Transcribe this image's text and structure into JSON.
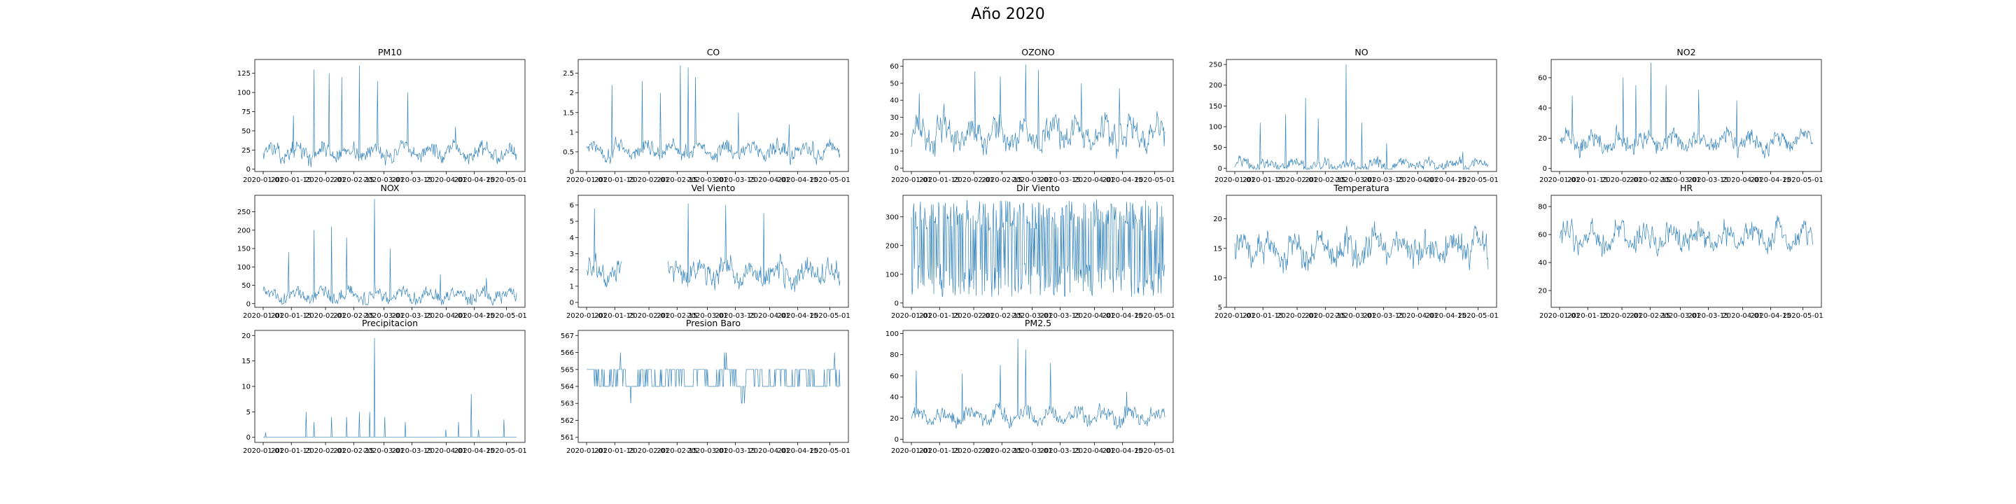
{
  "figure": {
    "suptitle": "Año 2020",
    "line_color": "#1f77b4"
  },
  "chart_data": [
    {
      "type": "line",
      "title": "PM10",
      "x_ticks": [
        "2020-01-01",
        "2020-01-15",
        "2020-02-01",
        "2020-02-15",
        "2020-03-01",
        "2020-03-15",
        "2020-04-01",
        "2020-04-15",
        "2020-05-01"
      ],
      "y_ticks": [
        0,
        25,
        50,
        75,
        100,
        125
      ],
      "ylim": [
        -3,
        143
      ],
      "series": [
        {
          "x_range": [
            "2020-01-01",
            "2020-05-06"
          ],
          "n": 420,
          "baseline": 22,
          "amplitude": 22,
          "spikes": [
            [
              0.12,
              70
            ],
            [
              0.2,
              130
            ],
            [
              0.26,
              125
            ],
            [
              0.31,
              120
            ],
            [
              0.38,
              135
            ],
            [
              0.45,
              115
            ],
            [
              0.57,
              100
            ],
            [
              0.76,
              55
            ]
          ]
        }
      ]
    },
    {
      "type": "line",
      "title": "CO",
      "x_ticks": [
        "2020-01-01",
        "2020-01-15",
        "2020-02-01",
        "2020-02-15",
        "2020-03-01",
        "2020-03-15",
        "2020-04-01",
        "2020-04-15",
        "2020-05-01"
      ],
      "y_ticks": [
        0.0,
        0.5,
        1.0,
        1.5,
        2.0,
        2.5
      ],
      "ylim": [
        0,
        2.85
      ],
      "series": [
        {
          "x_range": [
            "2020-01-01",
            "2020-05-06"
          ],
          "n": 420,
          "baseline": 0.55,
          "amplitude": 0.45,
          "spikes": [
            [
              0.1,
              2.2
            ],
            [
              0.22,
              2.3
            ],
            [
              0.29,
              2.0
            ],
            [
              0.37,
              2.7
            ],
            [
              0.4,
              2.65
            ],
            [
              0.43,
              2.4
            ],
            [
              0.6,
              1.5
            ],
            [
              0.8,
              1.2
            ]
          ]
        }
      ]
    },
    {
      "type": "line",
      "title": "OZONO",
      "x_ticks": [
        "2020-01-01",
        "2020-01-15",
        "2020-02-01",
        "2020-02-15",
        "2020-03-01",
        "2020-03-15",
        "2020-04-01",
        "2020-04-15",
        "2020-05-01"
      ],
      "y_ticks": [
        0,
        10,
        20,
        30,
        40,
        50,
        60
      ],
      "ylim": [
        -2,
        64
      ],
      "series": [
        {
          "x_range": [
            "2020-01-01",
            "2020-05-06"
          ],
          "n": 420,
          "baseline": 20,
          "amplitude": 18,
          "spikes": [
            [
              0.03,
              44
            ],
            [
              0.25,
              57
            ],
            [
              0.35,
              54
            ],
            [
              0.45,
              61
            ],
            [
              0.5,
              58
            ],
            [
              0.67,
              50
            ],
            [
              0.82,
              47
            ]
          ]
        }
      ]
    },
    {
      "type": "line",
      "title": "NO",
      "x_ticks": [
        "2020-01-01",
        "2020-01-15",
        "2020-02-01",
        "2020-02-15",
        "2020-03-01",
        "2020-03-15",
        "2020-04-01",
        "2020-04-15",
        "2020-05-01"
      ],
      "y_ticks": [
        0,
        50,
        100,
        150,
        200,
        250
      ],
      "ylim": [
        -8,
        262
      ],
      "series": [
        {
          "x_range": [
            "2020-01-01",
            "2020-05-06"
          ],
          "n": 420,
          "baseline": 8,
          "amplitude": 30,
          "spikes": [
            [
              0.1,
              110
            ],
            [
              0.2,
              130
            ],
            [
              0.28,
              170
            ],
            [
              0.33,
              120
            ],
            [
              0.44,
              250
            ],
            [
              0.5,
              110
            ],
            [
              0.6,
              60
            ],
            [
              0.9,
              40
            ]
          ]
        }
      ]
    },
    {
      "type": "line",
      "title": "NO2",
      "x_ticks": [
        "2020-01-01",
        "2020-01-15",
        "2020-02-01",
        "2020-02-15",
        "2020-03-01",
        "2020-03-15",
        "2020-04-01",
        "2020-04-15",
        "2020-05-01"
      ],
      "y_ticks": [
        0,
        20,
        40,
        60
      ],
      "ylim": [
        -2,
        72
      ],
      "series": [
        {
          "x_range": [
            "2020-01-01",
            "2020-05-06"
          ],
          "n": 420,
          "baseline": 18,
          "amplitude": 14,
          "spikes": [
            [
              0.05,
              48
            ],
            [
              0.25,
              60
            ],
            [
              0.3,
              55
            ],
            [
              0.36,
              70
            ],
            [
              0.42,
              55
            ],
            [
              0.55,
              52
            ],
            [
              0.7,
              45
            ]
          ]
        }
      ]
    },
    {
      "type": "line",
      "title": "NOX",
      "x_ticks": [
        "2020-01-01",
        "2020-01-15",
        "2020-02-01",
        "2020-02-15",
        "2020-03-01",
        "2020-03-15",
        "2020-04-01",
        "2020-04-15",
        "2020-05-01"
      ],
      "y_ticks": [
        0,
        50,
        100,
        150,
        200,
        250
      ],
      "ylim": [
        -10,
        295
      ],
      "series": [
        {
          "x_range": [
            "2020-01-01",
            "2020-05-06"
          ],
          "n": 420,
          "baseline": 22,
          "amplitude": 40,
          "spikes": [
            [
              0.1,
              140
            ],
            [
              0.2,
              200
            ],
            [
              0.27,
              210
            ],
            [
              0.33,
              180
            ],
            [
              0.44,
              285
            ],
            [
              0.5,
              150
            ],
            [
              0.7,
              80
            ],
            [
              0.88,
              70
            ]
          ]
        }
      ]
    },
    {
      "type": "line",
      "title": "Vel Viento",
      "x_ticks": [
        "2020-01-01",
        "2020-01-15",
        "2020-02-01",
        "2020-02-15",
        "2020-03-01",
        "2020-03-15",
        "2020-04-01",
        "2020-04-15",
        "2020-05-01"
      ],
      "y_ticks": [
        0,
        1,
        2,
        3,
        4,
        5,
        6
      ],
      "ylim": [
        -0.3,
        6.6
      ],
      "series": [
        {
          "x_range": [
            "2020-01-01",
            "2020-05-06"
          ],
          "n": 420,
          "baseline": 1.8,
          "amplitude": 1.6,
          "gaps": [
            [
              0.14,
              0.32
            ]
          ],
          "spikes": [
            [
              0.03,
              5.8
            ],
            [
              0.4,
              6.1
            ],
            [
              0.55,
              6.0
            ],
            [
              0.7,
              5.5
            ]
          ]
        }
      ]
    },
    {
      "type": "line",
      "title": "Dir Viento",
      "x_ticks": [
        "2020-01-01",
        "2020-01-15",
        "2020-02-01",
        "2020-02-15",
        "2020-03-01",
        "2020-03-15",
        "2020-04-01",
        "2020-04-15",
        "2020-05-01"
      ],
      "y_ticks": [
        0,
        100,
        200,
        300
      ],
      "ylim": [
        -15,
        375
      ],
      "series": [
        {
          "x_range": [
            "2020-01-01",
            "2020-05-06"
          ],
          "n": 420,
          "baseline": 90,
          "amplitude": 270,
          "spikes": []
        }
      ]
    },
    {
      "type": "line",
      "title": "Temperatura",
      "x_ticks": [
        "2020-01-01",
        "2020-01-15",
        "2020-02-01",
        "2020-02-15",
        "2020-03-01",
        "2020-03-15",
        "2020-04-01",
        "2020-04-15",
        "2020-05-01"
      ],
      "y_ticks": [
        5,
        10,
        15,
        20
      ],
      "ylim": [
        5,
        24
      ],
      "series": [
        {
          "x_range": [
            "2020-01-01",
            "2020-05-06"
          ],
          "n": 420,
          "baseline": 15,
          "amplitude": 5.5,
          "spikes": []
        }
      ]
    },
    {
      "type": "line",
      "title": "HR",
      "x_ticks": [
        "2020-01-01",
        "2020-01-15",
        "2020-02-01",
        "2020-02-15",
        "2020-03-01",
        "2020-03-15",
        "2020-04-01",
        "2020-04-15",
        "2020-05-01"
      ],
      "y_ticks": [
        20,
        40,
        60,
        80
      ],
      "ylim": [
        8,
        88
      ],
      "series": [
        {
          "x_range": [
            "2020-01-01",
            "2020-05-06"
          ],
          "n": 420,
          "baseline": 58,
          "amplitude": 18,
          "spikes": []
        }
      ]
    },
    {
      "type": "line",
      "title": "Precipitacion",
      "x_ticks": [
        "2020-01-01",
        "2020-01-15",
        "2020-02-01",
        "2020-02-15",
        "2020-03-01",
        "2020-03-15",
        "2020-04-01",
        "2020-04-15",
        "2020-05-01"
      ],
      "y_ticks": [
        0,
        5,
        10,
        15,
        20
      ],
      "ylim": [
        -1,
        21
      ],
      "series": [
        {
          "x_range": [
            "2020-01-01",
            "2020-05-06"
          ],
          "n": 420,
          "baseline": 0,
          "amplitude": 0,
          "spikes": [
            [
              0.01,
              1
            ],
            [
              0.17,
              5
            ],
            [
              0.2,
              3
            ],
            [
              0.27,
              4
            ],
            [
              0.33,
              4
            ],
            [
              0.38,
              5
            ],
            [
              0.42,
              5
            ],
            [
              0.44,
              19.5
            ],
            [
              0.48,
              4
            ],
            [
              0.56,
              3
            ],
            [
              0.72,
              1.5
            ],
            [
              0.77,
              3
            ],
            [
              0.82,
              8.5
            ],
            [
              0.85,
              1.5
            ],
            [
              0.95,
              3.5
            ]
          ]
        }
      ]
    },
    {
      "type": "line",
      "title": "Presion Baro",
      "x_ticks": [
        "2020-01-01",
        "2020-01-15",
        "2020-02-01",
        "2020-02-15",
        "2020-03-01",
        "2020-03-15",
        "2020-04-01",
        "2020-04-15",
        "2020-05-01"
      ],
      "y_ticks": [
        561,
        562,
        563,
        564,
        565,
        566,
        567
      ],
      "ylim": [
        560.7,
        567.3
      ],
      "series": [
        {
          "x_range": [
            "2020-01-01",
            "2020-05-06"
          ],
          "n": 420,
          "baseline": 564.5,
          "amplitude": 1.5,
          "step": 1,
          "spikes": []
        }
      ]
    },
    {
      "type": "line",
      "title": "PM2.5",
      "x_ticks": [
        "2020-01-01",
        "2020-01-15",
        "2020-02-01",
        "2020-02-15",
        "2020-03-01",
        "2020-03-15",
        "2020-04-01",
        "2020-04-15",
        "2020-05-01"
      ],
      "y_ticks": [
        0,
        20,
        40,
        60,
        80,
        100
      ],
      "ylim": [
        -3,
        103
      ],
      "series": [
        {
          "x_range": [
            "2020-01-01",
            "2020-05-06"
          ],
          "n": 420,
          "baseline": 22,
          "amplitude": 16,
          "spikes": [
            [
              0.02,
              65
            ],
            [
              0.2,
              62
            ],
            [
              0.35,
              70
            ],
            [
              0.42,
              95
            ],
            [
              0.45,
              85
            ],
            [
              0.55,
              72
            ],
            [
              0.85,
              45
            ]
          ]
        }
      ]
    }
  ]
}
